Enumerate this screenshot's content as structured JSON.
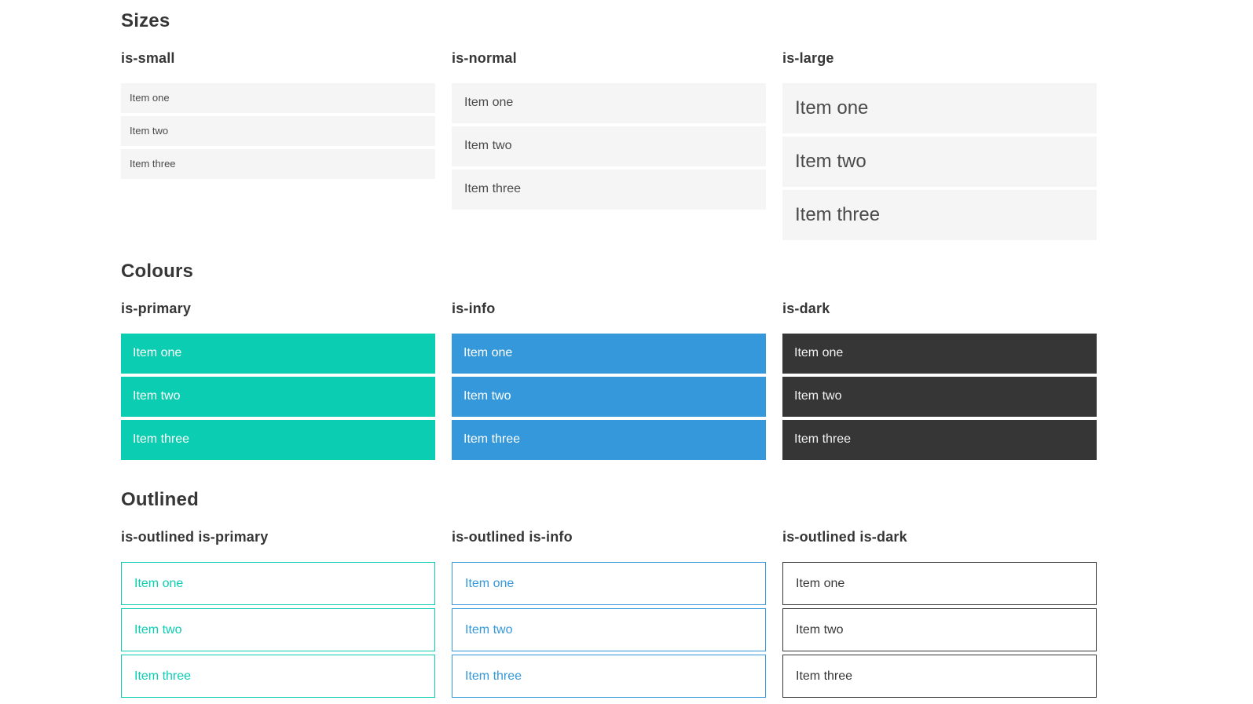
{
  "colors": {
    "primary": "#0bcdb2",
    "info": "#3498db",
    "dark": "#363636",
    "item_bg": "#f5f5f5",
    "item_text": "#4a4a4a",
    "heading_text": "#363636",
    "white": "#ffffff"
  },
  "sections": [
    {
      "title": "Sizes",
      "groups": [
        {
          "label": "is-small",
          "items": [
            "Item one",
            "Item two",
            "Item three"
          ]
        },
        {
          "label": "is-normal",
          "items": [
            "Item one",
            "Item two",
            "Item three"
          ]
        },
        {
          "label": "is-large",
          "items": [
            "Item one",
            "Item two",
            "Item three"
          ]
        }
      ]
    },
    {
      "title": "Colours",
      "groups": [
        {
          "label": "is-primary",
          "items": [
            "Item one",
            "Item two",
            "Item three"
          ]
        },
        {
          "label": "is-info",
          "items": [
            "Item one",
            "Item two",
            "Item three"
          ]
        },
        {
          "label": "is-dark",
          "items": [
            "Item one",
            "Item two",
            "Item three"
          ]
        }
      ]
    },
    {
      "title": "Outlined",
      "groups": [
        {
          "label": "is-outlined is-primary",
          "items": [
            "Item one",
            "Item two",
            "Item three"
          ]
        },
        {
          "label": "is-outlined is-info",
          "items": [
            "Item one",
            "Item two",
            "Item three"
          ]
        },
        {
          "label": "is-outlined is-dark",
          "items": [
            "Item one",
            "Item two",
            "Item three"
          ]
        }
      ]
    }
  ]
}
